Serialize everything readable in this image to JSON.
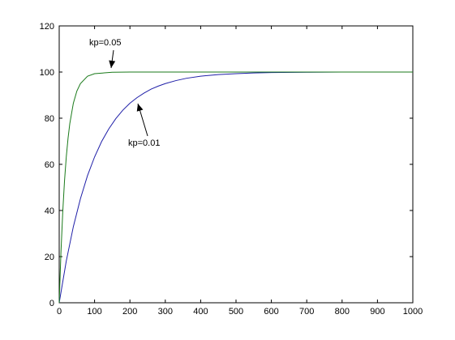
{
  "chart_data": {
    "type": "line",
    "title": "",
    "xlabel": "",
    "ylabel": "",
    "xlim": [
      0,
      1000
    ],
    "ylim": [
      0,
      120
    ],
    "xticks": [
      0,
      100,
      200,
      300,
      400,
      500,
      600,
      700,
      800,
      900,
      1000
    ],
    "yticks": [
      0,
      20,
      40,
      60,
      80,
      100,
      120
    ],
    "grid": false,
    "series": [
      {
        "color": "#1f1fa8",
        "x": [
          0,
          20,
          40,
          60,
          80,
          100,
          120,
          140,
          160,
          180,
          200,
          220,
          240,
          260,
          280,
          300,
          330,
          360,
          400,
          450,
          500,
          550,
          600,
          700,
          800,
          900,
          1000
        ],
        "y": [
          0,
          18.1,
          33.0,
          45.1,
          55.1,
          63.2,
          69.9,
          75.3,
          79.8,
          83.5,
          86.5,
          88.9,
          90.9,
          92.6,
          93.9,
          95.0,
          96.3,
          97.3,
          98.2,
          98.9,
          99.3,
          99.6,
          99.8,
          99.9,
          100.0,
          100.0,
          100.0
        ]
      },
      {
        "color": "#1a7a1a",
        "x": [
          0,
          5,
          10,
          15,
          20,
          25,
          30,
          40,
          50,
          60,
          80,
          100,
          150,
          200,
          300,
          500,
          700,
          1000
        ],
        "y": [
          0,
          22.1,
          39.3,
          52.8,
          63.2,
          71.3,
          77.7,
          86.5,
          91.8,
          95.0,
          98.2,
          99.3,
          99.9,
          100.0,
          100.0,
          100.0,
          100.0,
          100.0
        ]
      }
    ],
    "annotations": [
      {
        "text": "kp=0.05",
        "x": 145,
        "y": 104
      },
      {
        "text": "kp=0.01",
        "x": 225,
        "y": 82
      }
    ]
  }
}
